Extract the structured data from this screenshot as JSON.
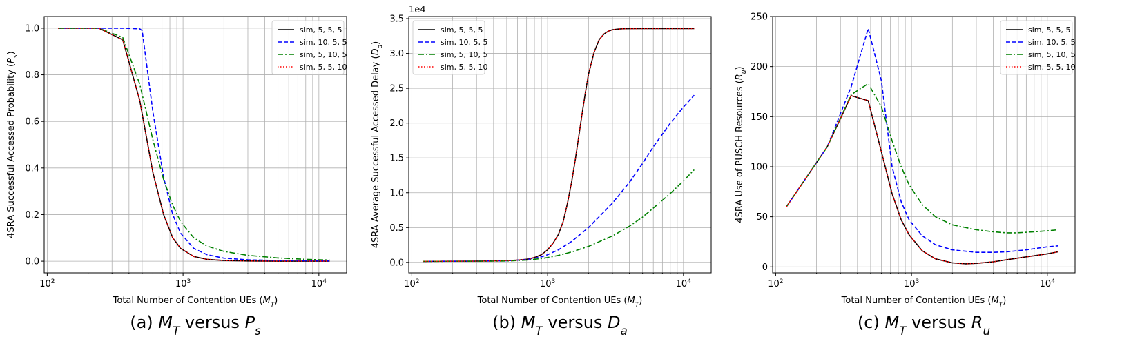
{
  "chart_data": [
    {
      "type": "line",
      "caption": "(a) M_T versus P_s",
      "xlabel": "Total Number of Contention UEs (M_T)",
      "ylabel": "4SRA Successful Accessed Probability (P_s)",
      "xscale": "log",
      "xlim": [
        95,
        16000
      ],
      "ylim": [
        -0.05,
        1.05
      ],
      "xticks": [
        {
          "value": 100,
          "label": "10^2"
        },
        {
          "value": 1000,
          "label": "10^3"
        },
        {
          "value": 10000,
          "label": "10^4"
        }
      ],
      "yticks": [
        0.0,
        0.2,
        0.4,
        0.6,
        0.8,
        1.0
      ],
      "ytick_labels": [
        "0.0",
        "0.2",
        "0.4",
        "0.6",
        "0.8",
        "1.0"
      ],
      "grid": true,
      "legend": "top-right",
      "series": [
        {
          "name": "sim, 5, 5, 5",
          "color": "#000000",
          "style": "solid",
          "x": [
            120,
            240,
            360,
            480,
            600,
            720,
            840,
            960,
            1200,
            1500,
            2000,
            3000,
            5000,
            8000,
            12000
          ],
          "values": [
            1.0,
            1.0,
            0.95,
            0.69,
            0.38,
            0.2,
            0.1,
            0.055,
            0.02,
            0.008,
            0.003,
            0.001,
            0.0,
            0.0,
            0.0
          ]
        },
        {
          "name": "sim, 10, 5, 5",
          "color": "#0000ff",
          "style": "dashed",
          "x": [
            120,
            240,
            360,
            480,
            500,
            600,
            720,
            840,
            960,
            1200,
            1500,
            2000,
            3000,
            5000,
            8000,
            12000
          ],
          "values": [
            1.0,
            1.0,
            1.0,
            0.997,
            0.99,
            0.64,
            0.36,
            0.2,
            0.12,
            0.055,
            0.028,
            0.013,
            0.006,
            0.003,
            0.002,
            0.001
          ]
        },
        {
          "name": "sim, 5, 10, 5",
          "color": "#008000",
          "style": "dashdot",
          "x": [
            120,
            240,
            360,
            480,
            600,
            720,
            840,
            960,
            1200,
            1500,
            2000,
            3000,
            5000,
            8000,
            12000
          ],
          "values": [
            1.0,
            1.0,
            0.96,
            0.76,
            0.52,
            0.35,
            0.24,
            0.17,
            0.1,
            0.065,
            0.042,
            0.025,
            0.014,
            0.008,
            0.005
          ]
        },
        {
          "name": "sim, 5, 5, 10",
          "color": "#ff0000",
          "style": "dotted",
          "x": [
            120,
            240,
            360,
            480,
            600,
            720,
            840,
            960,
            1200,
            1500,
            2000,
            3000,
            5000,
            8000,
            12000
          ],
          "values": [
            1.0,
            1.0,
            0.95,
            0.69,
            0.38,
            0.2,
            0.1,
            0.055,
            0.02,
            0.008,
            0.003,
            0.001,
            0.0,
            0.0,
            0.0
          ]
        }
      ]
    },
    {
      "type": "line",
      "caption": "(b) M_T versus D_a",
      "xlabel": "Total Number of Contention UEs (M_T)",
      "ylabel": "4SRA Average Successful Accessed Delay (D_a)",
      "scale_label": "1e4",
      "xscale": "log",
      "xlim": [
        95,
        16000
      ],
      "ylim": [
        -1500,
        35300
      ],
      "xticks": [
        {
          "value": 100,
          "label": "10^2"
        },
        {
          "value": 1000,
          "label": "10^3"
        },
        {
          "value": 10000,
          "label": "10^4"
        }
      ],
      "yticks": [
        0,
        5000,
        10000,
        15000,
        20000,
        25000,
        30000,
        35000
      ],
      "ytick_labels": [
        "0.0",
        "0.5",
        "1.0",
        "1.5",
        "2.0",
        "2.5",
        "3.0",
        "3.5"
      ],
      "grid": true,
      "legend": "top-left",
      "series": [
        {
          "name": "sim, 5, 5, 5",
          "color": "#000000",
          "style": "solid",
          "x": [
            120,
            200,
            300,
            400,
            500,
            600,
            700,
            800,
            900,
            1000,
            1100,
            1200,
            1300,
            1400,
            1500,
            1600,
            1700,
            1800,
            1900,
            2000,
            2200,
            2400,
            2600,
            2800,
            3000,
            3300,
            3600,
            4000,
            5000,
            7000,
            12000
          ],
          "values": [
            150,
            160,
            180,
            210,
            260,
            330,
            450,
            700,
            1100,
            1800,
            2800,
            4000,
            5800,
            8500,
            11500,
            14800,
            18200,
            21500,
            24500,
            27000,
            30200,
            32000,
            32800,
            33200,
            33400,
            33500,
            33550,
            33560,
            33570,
            33570,
            33570
          ]
        },
        {
          "name": "sim, 10, 5, 5",
          "color": "#0000ff",
          "style": "dashed",
          "x": [
            120,
            300,
            500,
            700,
            900,
            1000,
            1200,
            1500,
            2000,
            3000,
            4000,
            5000,
            6000,
            8000,
            10000,
            12000
          ],
          "values": [
            150,
            170,
            230,
            400,
            800,
            1100,
            1800,
            3000,
            5000,
            8500,
            11500,
            14200,
            16600,
            20000,
            22300,
            24000
          ]
        },
        {
          "name": "sim, 5, 10, 5",
          "color": "#008000",
          "style": "dashdot",
          "x": [
            120,
            300,
            500,
            700,
            900,
            1000,
            1200,
            1500,
            2000,
            3000,
            4000,
            5000,
            6000,
            8000,
            10000,
            12000
          ],
          "values": [
            150,
            160,
            200,
            330,
            550,
            700,
            1000,
            1500,
            2300,
            3800,
            5200,
            6500,
            7800,
            9900,
            11700,
            13300
          ]
        },
        {
          "name": "sim, 5, 5, 10",
          "color": "#ff0000",
          "style": "dotted",
          "x": [
            120,
            200,
            300,
            400,
            500,
            600,
            700,
            800,
            900,
            1000,
            1100,
            1200,
            1300,
            1400,
            1500,
            1600,
            1700,
            1800,
            1900,
            2000,
            2200,
            2400,
            2600,
            2800,
            3000,
            3300,
            3600,
            4000,
            5000,
            7000,
            12000
          ],
          "values": [
            150,
            160,
            180,
            210,
            260,
            330,
            450,
            700,
            1100,
            1800,
            2800,
            4000,
            5800,
            8500,
            11500,
            14800,
            18200,
            21500,
            24500,
            27000,
            30200,
            32000,
            32800,
            33200,
            33400,
            33500,
            33550,
            33560,
            33570,
            33570,
            33570
          ]
        }
      ]
    },
    {
      "type": "line",
      "caption": "(c) M_T versus R_u",
      "xlabel": "Total Number of Contention UEs (M_T)",
      "ylabel": "4SRA Use of PUSCH Resources (R_u)",
      "xscale": "log",
      "xlim": [
        95,
        16000
      ],
      "ylim": [
        -6,
        250
      ],
      "xticks": [
        {
          "value": 100,
          "label": "10^2"
        },
        {
          "value": 1000,
          "label": "10^3"
        },
        {
          "value": 10000,
          "label": "10^4"
        }
      ],
      "yticks": [
        0,
        50,
        100,
        150,
        200,
        250
      ],
      "ytick_labels": [
        "0",
        "50",
        "100",
        "150",
        "200",
        "250"
      ],
      "grid": true,
      "legend": "top-right",
      "series": [
        {
          "name": "sim, 5, 5, 5",
          "color": "#000000",
          "style": "solid",
          "x": [
            120,
            240,
            360,
            480,
            600,
            720,
            840,
            960,
            1200,
            1500,
            2000,
            2500,
            3000,
            4000,
            5000,
            7000,
            10000,
            12000
          ],
          "values": [
            60,
            120,
            171,
            166,
            115,
            73,
            47,
            32,
            16,
            8,
            4,
            3,
            3.5,
            5,
            7,
            10,
            13,
            15
          ]
        },
        {
          "name": "sim, 10, 5, 5",
          "color": "#0000ff",
          "style": "dashed",
          "x": [
            120,
            240,
            360,
            480,
            600,
            720,
            840,
            960,
            1200,
            1500,
            2000,
            3000,
            4000,
            5000,
            7000,
            10000,
            12000
          ],
          "values": [
            60,
            120,
            180,
            238,
            186,
            100,
            65,
            47,
            31,
            22,
            17,
            14.5,
            14.5,
            15,
            17,
            20,
            21
          ]
        },
        {
          "name": "sim, 5, 10, 5",
          "color": "#008000",
          "style": "dashdot",
          "x": [
            120,
            240,
            360,
            480,
            600,
            720,
            840,
            960,
            1200,
            1500,
            2000,
            3000,
            4000,
            5000,
            6000,
            8000,
            10000,
            12000
          ],
          "values": [
            60,
            120,
            172,
            183,
            160,
            126,
            100,
            82,
            62,
            50,
            42,
            37,
            35,
            34,
            34,
            35,
            36,
            37
          ]
        },
        {
          "name": "sim, 5, 5, 10",
          "color": "#ff0000",
          "style": "dotted",
          "x": [
            120,
            240,
            360,
            480,
            600,
            720,
            840,
            960,
            1200,
            1500,
            2000,
            2500,
            3000,
            4000,
            5000,
            7000,
            10000,
            12000
          ],
          "values": [
            60,
            120,
            171,
            166,
            115,
            73,
            47,
            32,
            16,
            8,
            4,
            3,
            3.5,
            5,
            7,
            10,
            13,
            15
          ]
        }
      ]
    }
  ]
}
